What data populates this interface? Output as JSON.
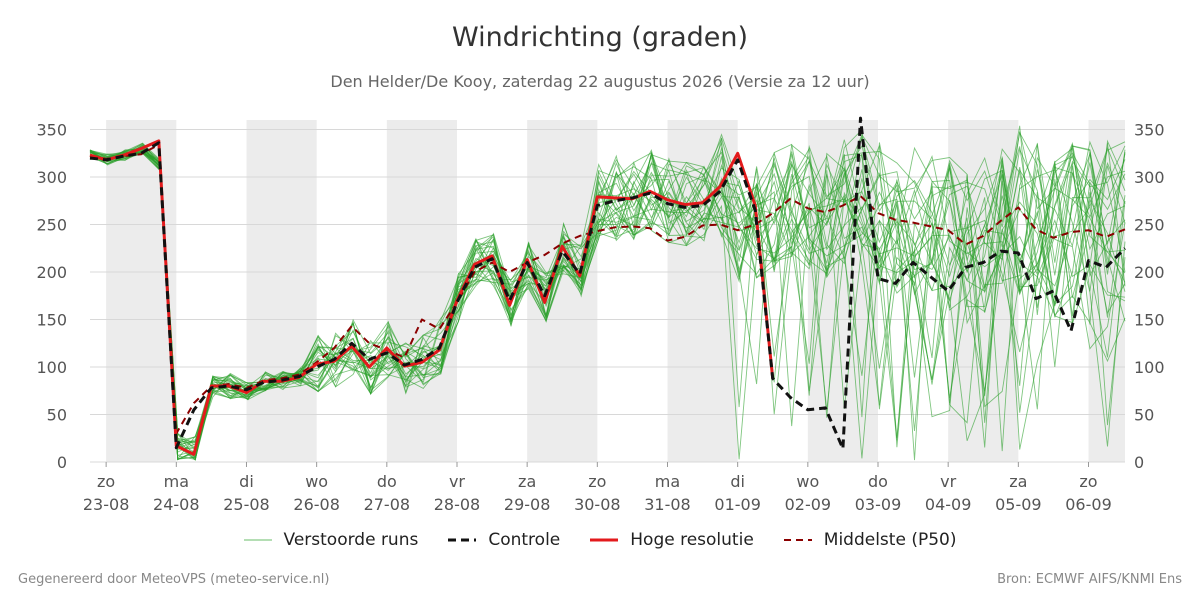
{
  "title": "Windrichting (graden)",
  "subtitle": "Den Helder/De Kooy, zaterdag 22 augustus 2026 (Versie za 12 uur)",
  "footer_left": "Gegenereerd door MeteoVPS (meteo-service.nl)",
  "footer_right": "Bron: ECMWF AIFS/KNMI Ens",
  "legend": [
    {
      "label": "Verstoorde runs",
      "color": "#2ca02c",
      "style": "thin"
    },
    {
      "label": "Controle",
      "color": "#111111",
      "style": "dashed"
    },
    {
      "label": "Hoge resolutie",
      "color": "#e31a1c",
      "style": "solid"
    },
    {
      "label": "Middelste (P50)",
      "color": "#8b0000",
      "style": "dashed"
    }
  ],
  "chart_data": {
    "type": "line",
    "title": "Windrichting (graden)",
    "xlabel": "",
    "ylabel": "",
    "ylim": [
      0,
      360
    ],
    "xlim": [
      -0.23,
      14.52
    ],
    "yticks": [
      0,
      50,
      100,
      150,
      200,
      250,
      300,
      350
    ],
    "grid": true,
    "legend_position": "bottom",
    "x_ticks": [
      {
        "x": 0,
        "day": "zo",
        "date": "23-08"
      },
      {
        "x": 1,
        "day": "ma",
        "date": "24-08"
      },
      {
        "x": 2,
        "day": "di",
        "date": "25-08"
      },
      {
        "x": 3,
        "day": "wo",
        "date": "26-08"
      },
      {
        "x": 4,
        "day": "do",
        "date": "27-08"
      },
      {
        "x": 5,
        "day": "vr",
        "date": "28-08"
      },
      {
        "x": 6,
        "day": "za",
        "date": "29-08"
      },
      {
        "x": 7,
        "day": "zo",
        "date": "30-08"
      },
      {
        "x": 8,
        "day": "ma",
        "date": "31-08"
      },
      {
        "x": 9,
        "day": "di",
        "date": "01-09"
      },
      {
        "x": 10,
        "day": "wo",
        "date": "02-09"
      },
      {
        "x": 11,
        "day": "do",
        "date": "03-09"
      },
      {
        "x": 12,
        "day": "vr",
        "date": "04-09"
      },
      {
        "x": 13,
        "day": "za",
        "date": "05-09"
      },
      {
        "x": 14,
        "day": "zo",
        "date": "06-09"
      }
    ],
    "shaded_bands": [
      [
        0,
        1
      ],
      [
        2,
        3
      ],
      [
        4,
        5
      ],
      [
        6,
        7
      ],
      [
        8,
        9
      ],
      [
        10,
        11
      ],
      [
        12,
        13
      ],
      [
        14,
        14.52
      ]
    ],
    "series": [
      {
        "name": "Hoge resolutie",
        "color": "#e31a1c",
        "x": [
          -0.23,
          0,
          0.25,
          0.5,
          0.75,
          1.0,
          1.25,
          1.5,
          1.75,
          2.0,
          2.25,
          2.5,
          2.75,
          3.0,
          3.25,
          3.5,
          3.75,
          4.0,
          4.25,
          4.5,
          4.75,
          5.0,
          5.25,
          5.5,
          5.75,
          6.0,
          6.25,
          6.5,
          6.75,
          7.0,
          7.25,
          7.5,
          7.75,
          8.0,
          8.25,
          8.5,
          8.75,
          9.0,
          9.25,
          9.5
        ],
        "y": [
          323,
          318,
          323,
          330,
          338,
          17,
          8,
          80,
          80,
          73,
          85,
          85,
          89,
          103,
          106,
          122,
          100,
          120,
          101,
          105,
          118,
          170,
          208,
          217,
          165,
          213,
          168,
          227,
          196,
          279,
          278,
          277,
          285,
          276,
          271,
          273,
          290,
          325,
          270,
          88
        ]
      },
      {
        "name": "Controle",
        "color": "#111111",
        "x": [
          -0.23,
          0,
          0.25,
          0.5,
          0.75,
          1.0,
          1.25,
          1.5,
          1.75,
          2.0,
          2.25,
          2.5,
          2.75,
          3.0,
          3.25,
          3.5,
          3.75,
          4.0,
          4.25,
          4.5,
          4.75,
          5.0,
          5.25,
          5.5,
          5.75,
          6.0,
          6.25,
          6.5,
          6.75,
          7.0,
          7.25,
          7.5,
          7.75,
          8.0,
          8.25,
          8.5,
          8.75,
          9.0,
          9.25,
          9.5,
          9.75,
          10.0,
          10.25,
          10.5,
          10.75,
          11.0,
          11.25,
          11.5,
          11.75,
          12.0,
          12.25,
          12.5,
          12.75,
          13.0,
          13.25,
          13.5,
          13.75,
          14.0,
          14.25,
          14.52
        ],
        "y": [
          320,
          318,
          322,
          325,
          336,
          15,
          55,
          78,
          80,
          76,
          84,
          86,
          90,
          100,
          108,
          125,
          108,
          115,
          102,
          108,
          120,
          168,
          205,
          214,
          170,
          210,
          175,
          222,
          198,
          270,
          275,
          278,
          283,
          272,
          268,
          270,
          285,
          318,
          265,
          88,
          68,
          55,
          57,
          14,
          365,
          193,
          188,
          210,
          195,
          180,
          205,
          210,
          222,
          220,
          172,
          180,
          138,
          212,
          205,
          225
        ]
      },
      {
        "name": "Middelste (P50)",
        "color": "#8b0000",
        "x": [
          -0.23,
          0,
          0.25,
          0.5,
          0.75,
          1.0,
          1.25,
          1.5,
          1.75,
          2.0,
          2.25,
          2.5,
          2.75,
          3.0,
          3.25,
          3.5,
          3.75,
          4.0,
          4.25,
          4.5,
          4.75,
          5.0,
          5.25,
          5.5,
          5.75,
          6.0,
          6.25,
          6.5,
          6.75,
          7.0,
          7.25,
          7.5,
          7.75,
          8.0,
          8.25,
          8.5,
          8.75,
          9.0,
          9.25,
          9.5,
          9.75,
          10.0,
          10.25,
          10.5,
          10.75,
          11.0,
          11.25,
          11.5,
          11.75,
          12.0,
          12.25,
          12.5,
          12.75,
          13.0,
          13.25,
          13.5,
          13.75,
          14.0,
          14.25,
          14.52
        ],
        "y": [
          322,
          319,
          322,
          324,
          334,
          30,
          62,
          80,
          82,
          78,
          86,
          88,
          92,
          105,
          120,
          143,
          125,
          118,
          110,
          150,
          140,
          168,
          200,
          210,
          200,
          210,
          218,
          230,
          238,
          243,
          247,
          248,
          246,
          233,
          237,
          249,
          250,
          244,
          250,
          262,
          277,
          267,
          263,
          270,
          280,
          262,
          255,
          252,
          248,
          244,
          229,
          238,
          254,
          268,
          245,
          236,
          242,
          244,
          237,
          245
        ]
      },
      {
        "name": "Verstoorde runs",
        "color": "#2ca02c",
        "ensemble": true,
        "count": 30
      }
    ]
  }
}
